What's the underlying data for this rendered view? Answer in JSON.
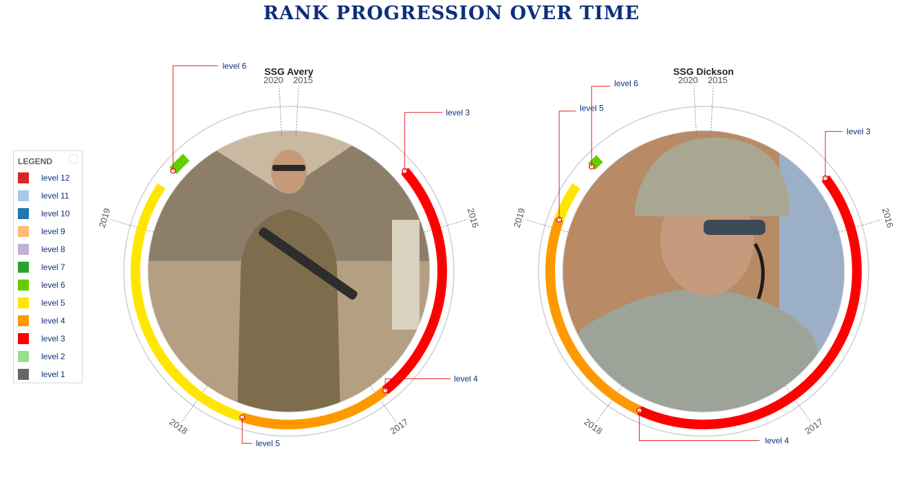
{
  "title": "RANK PROGRESSION OVER TIME",
  "legend": {
    "title": "LEGEND",
    "items": [
      {
        "label": "level 12",
        "color": "#d62728"
      },
      {
        "label": "level 11",
        "color": "#aec7e8"
      },
      {
        "label": "level 10",
        "color": "#1f77b4"
      },
      {
        "label": "level 9",
        "color": "#ffbb78"
      },
      {
        "label": "level 8",
        "color": "#c5b0d5"
      },
      {
        "label": "level 7",
        "color": "#2ca02c"
      },
      {
        "label": "level 6",
        "color": "#66cc00"
      },
      {
        "label": "level 5",
        "color": "#ffe600"
      },
      {
        "label": "level 4",
        "color": "#ff9900"
      },
      {
        "label": "level 3",
        "color": "#ff0000"
      },
      {
        "label": "level 2",
        "color": "#98df8a"
      },
      {
        "label": "level 1",
        "color": "#666666"
      }
    ]
  },
  "chart_data": [
    {
      "type": "radial-timeline",
      "title": "SSG Avery",
      "years": [
        "2015",
        "2016",
        "2017",
        "2018",
        "2019",
        "2020"
      ],
      "photo": "soldier standing in desert camp holding rifle",
      "series": [
        {
          "level": "level 3",
          "start": 2015.65,
          "end": 2016.95,
          "color": "#ff0000",
          "callout": "level 3"
        },
        {
          "level": "level 4",
          "start": 2016.95,
          "end": 2017.75,
          "color": "#ff9900",
          "callout": "level 4"
        },
        {
          "level": "level 5",
          "start": 2017.75,
          "end": 2019.25,
          "color": "#ffe600",
          "callout": "level 5"
        },
        {
          "level": "level 6",
          "start": 2019.35,
          "end": 2019.45,
          "color": "#66cc00",
          "callout": "level 6"
        }
      ]
    },
    {
      "type": "radial-timeline",
      "title": "SSG Dickson",
      "years": [
        "2015",
        "2016",
        "2017",
        "2018",
        "2019",
        "2020"
      ],
      "photo": "soldier in helmet with headset",
      "series": [
        {
          "level": "level 3",
          "start": 2015.7,
          "end": 2017.85,
          "color": "#ff0000",
          "callout": "level 3"
        },
        {
          "level": "level 4",
          "start": 2017.85,
          "end": 2019.05,
          "color": "#ff9900",
          "callout": "level 4"
        },
        {
          "level": "level 5",
          "start": 2019.05,
          "end": 2019.25,
          "color": "#ffe600",
          "callout": "level 5"
        },
        {
          "level": "level 6",
          "start": 2019.38,
          "end": 2019.44,
          "color": "#66cc00",
          "callout": "level 6"
        }
      ]
    }
  ]
}
